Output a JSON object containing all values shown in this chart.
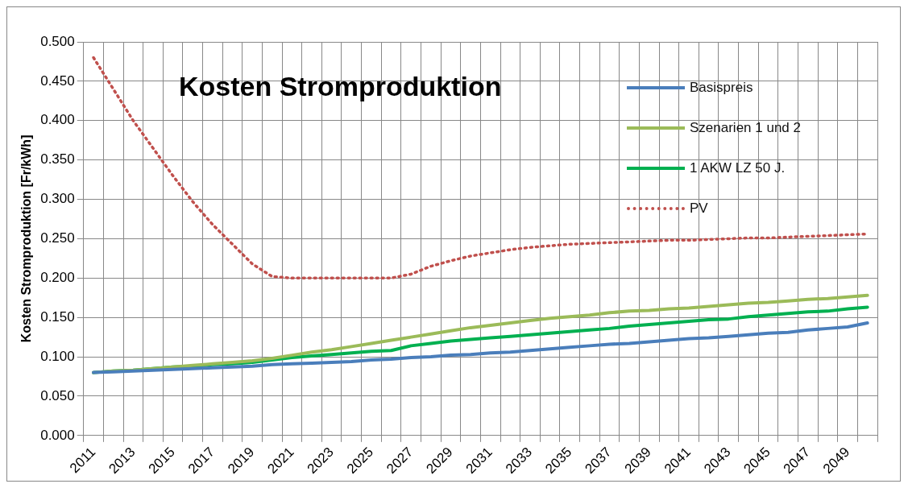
{
  "chart_data": {
    "type": "line",
    "title": "Kosten Stromproduktion",
    "ylabel": "Kosten Stromproduktion [Fr/kWh]",
    "categories": [
      "2011",
      null,
      "2013",
      null,
      "2015",
      null,
      "2017",
      null,
      "2019",
      null,
      "2021",
      null,
      "2023",
      null,
      "2025",
      null,
      "2027",
      null,
      "2029",
      null,
      "2031",
      null,
      "2033",
      null,
      "2035",
      null,
      "2037",
      null,
      "2039",
      null,
      "2041",
      null,
      "2043",
      null,
      "2045",
      null,
      "2047",
      null,
      "2049",
      null
    ],
    "series": [
      {
        "name": "Basispreis",
        "color": "#4a7ebb",
        "values": [
          0.08,
          0.081,
          0.082,
          0.083,
          0.084,
          0.085,
          0.086,
          0.087,
          0.088,
          0.09,
          0.091,
          0.092,
          0.093,
          0.094,
          0.096,
          0.097,
          0.099,
          0.1,
          0.102,
          0.103,
          0.105,
          0.106,
          0.108,
          0.11,
          0.112,
          0.114,
          0.116,
          0.117,
          0.119,
          0.121,
          0.123,
          0.124,
          0.126,
          0.128,
          0.13,
          0.131,
          0.134,
          0.136,
          0.138,
          0.143
        ]
      },
      {
        "name": "Szenarien 1 und 2",
        "color": "#9bbb59",
        "values": [
          0.08,
          0.082,
          0.083,
          0.085,
          0.087,
          0.089,
          0.091,
          0.093,
          0.095,
          0.098,
          0.102,
          0.106,
          0.109,
          0.113,
          0.117,
          0.121,
          0.125,
          0.129,
          0.133,
          0.137,
          0.14,
          0.143,
          0.146,
          0.149,
          0.151,
          0.153,
          0.156,
          0.158,
          0.159,
          0.161,
          0.162,
          0.164,
          0.166,
          0.168,
          0.169,
          0.171,
          0.173,
          0.174,
          0.176,
          0.178
        ]
      },
      {
        "name": "1 AKW LZ 50 J.",
        "color": "#00b050",
        "values": [
          0.08,
          0.082,
          0.083,
          0.085,
          0.087,
          0.088,
          0.09,
          0.091,
          0.093,
          0.096,
          0.099,
          0.101,
          0.103,
          0.105,
          0.107,
          0.108,
          0.114,
          0.117,
          0.12,
          0.122,
          0.124,
          0.126,
          0.128,
          0.13,
          0.132,
          0.134,
          0.136,
          0.139,
          0.141,
          0.143,
          0.145,
          0.147,
          0.148,
          0.151,
          0.153,
          0.155,
          0.157,
          0.158,
          0.161,
          0.163
        ]
      },
      {
        "name": "PV",
        "color": "#c0504d",
        "line_style": "dotted",
        "values": [
          0.48,
          0.44,
          0.4,
          0.365,
          0.33,
          0.297,
          0.268,
          0.243,
          0.218,
          0.202,
          0.2,
          0.2,
          0.2,
          0.2,
          0.2,
          0.2,
          0.205,
          0.215,
          0.222,
          0.228,
          0.232,
          0.236,
          0.239,
          0.241,
          0.243,
          0.244,
          0.245,
          0.246,
          0.247,
          0.248,
          0.248,
          0.249,
          0.25,
          0.251,
          0.251,
          0.252,
          0.253,
          0.254,
          0.255,
          0.256
        ]
      }
    ],
    "ylim": [
      0,
      0.5
    ],
    "yticks": [
      {
        "value": 0,
        "label": "0.000"
      },
      {
        "value": 0.05,
        "label": "0.050"
      },
      {
        "value": 0.1,
        "label": "0.100"
      },
      {
        "value": 0.15,
        "label": "0.150"
      },
      {
        "value": 0.2,
        "label": "0.200"
      },
      {
        "value": 0.25,
        "label": "0.250"
      },
      {
        "value": 0.3,
        "label": "0.300"
      },
      {
        "value": 0.35,
        "label": "0.350"
      },
      {
        "value": 0.4,
        "label": "0.400"
      },
      {
        "value": 0.45,
        "label": "0.450"
      },
      {
        "value": 0.5,
        "label": "0.500"
      }
    ],
    "grid": true,
    "legend": "top right",
    "marker": "none",
    "line_style": "solid"
  }
}
